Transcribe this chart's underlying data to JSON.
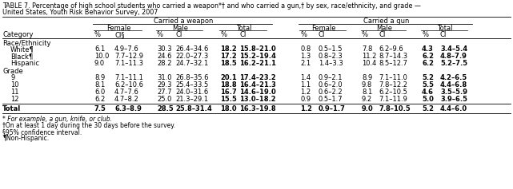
{
  "title_line1": "TABLE 7. Percentage of high school students who carried a weapon*† and who carried a gun,† by sex, race/ethnicity, and grade —",
  "title_line2": "United States, Youth Risk Behavior Survey, 2007",
  "col_group1": "Carried a weapon",
  "col_group2": "Carried a gun",
  "section1": "Race/Ethnicity",
  "section2": "Grade",
  "rows": [
    {
      "label": "White¶",
      "w_fp": "6.1",
      "w_fc": "4.9–7.6",
      "w_mp": "30.3",
      "w_mc": "26.4–34.6",
      "w_tp": "18.2",
      "w_tc": "15.8–21.0",
      "g_fp": "0.8",
      "g_fc": "0.5–1.5",
      "g_mp": "7.8",
      "g_mc": "6.2–9.6",
      "g_tp": "4.3",
      "g_tc": "3.4–5.4",
      "bold": false,
      "indent": true
    },
    {
      "label": "Black¶",
      "w_fp": "10.0",
      "w_fc": "7.7–12.9",
      "w_mp": "24.6",
      "w_mc": "22.0–27.3",
      "w_tp": "17.2",
      "w_tc": "15.2–19.4",
      "g_fp": "1.3",
      "g_fc": "0.8–2.3",
      "g_mp": "11.2",
      "g_mc": "8.7–14.3",
      "g_tp": "6.2",
      "g_tc": "4.8–7.9",
      "bold": false,
      "indent": true
    },
    {
      "label": "Hispanic",
      "w_fp": "9.0",
      "w_fc": "7.1–11.3",
      "w_mp": "28.2",
      "w_mc": "24.7–32.1",
      "w_tp": "18.5",
      "w_tc": "16.2–21.1",
      "g_fp": "2.1",
      "g_fc": "1.4–3.3",
      "g_mp": "10.4",
      "g_mc": "8.5–12.7",
      "g_tp": "6.2",
      "g_tc": "5.2–7.5",
      "bold": false,
      "indent": true
    },
    {
      "label": "9",
      "w_fp": "8.9",
      "w_fc": "7.1–11.1",
      "w_mp": "31.0",
      "w_mc": "26.8–35.6",
      "w_tp": "20.1",
      "w_tc": "17.4–23.2",
      "g_fp": "1.4",
      "g_fc": "0.9–2.1",
      "g_mp": "8.9",
      "g_mc": "7.1–11.0",
      "g_tp": "5.2",
      "g_tc": "4.2–6.5",
      "bold": false,
      "indent": true
    },
    {
      "label": "10",
      "w_fp": "8.1",
      "w_fc": "6.2–10.6",
      "w_mp": "29.3",
      "w_mc": "25.4–33.5",
      "w_tp": "18.8",
      "w_tc": "16.4–21.3",
      "g_fp": "1.1",
      "g_fc": "0.6–2.0",
      "g_mp": "9.8",
      "g_mc": "7.8–12.2",
      "g_tp": "5.5",
      "g_tc": "4.4–6.8",
      "bold": false,
      "indent": true
    },
    {
      "label": "11",
      "w_fp": "6.0",
      "w_fc": "4.7–7.6",
      "w_mp": "27.7",
      "w_mc": "24.0–31.6",
      "w_tp": "16.7",
      "w_tc": "14.6–19.0",
      "g_fp": "1.2",
      "g_fc": "0.6–2.2",
      "g_mp": "8.1",
      "g_mc": "6.2–10.5",
      "g_tp": "4.6",
      "g_tc": "3.5–5.9",
      "bold": false,
      "indent": true
    },
    {
      "label": "12",
      "w_fp": "6.2",
      "w_fc": "4.7–8.2",
      "w_mp": "25.0",
      "w_mc": "21.3–29.1",
      "w_tp": "15.5",
      "w_tc": "13.0–18.2",
      "g_fp": "0.9",
      "g_fc": "0.5–1.7",
      "g_mp": "9.2",
      "g_mc": "7.1–11.9",
      "g_tp": "5.0",
      "g_tc": "3.9–6.5",
      "bold": false,
      "indent": true
    },
    {
      "label": "Total",
      "w_fp": "7.5",
      "w_fc": "6.3–8.9",
      "w_mp": "28.5",
      "w_mc": "25.8–31.4",
      "w_tp": "18.0",
      "w_tc": "16.3–19.8",
      "g_fp": "1.2",
      "g_fc": "0.9–1.7",
      "g_mp": "9.0",
      "g_mc": "7.8–10.5",
      "g_tp": "5.2",
      "g_tc": "4.4–6.0",
      "bold": true,
      "indent": false
    }
  ],
  "footnotes": [
    "* For example, a gun, knife, or club.",
    "†On at least 1 day during the 30 days before the survey.",
    "§95% confidence interval.",
    "¶Non-Hispanic."
  ],
  "bg_color": "#FFFFFF",
  "fs_title": 5.8,
  "fs_header": 6.0,
  "fs_data": 6.0,
  "fs_footnote": 5.5
}
